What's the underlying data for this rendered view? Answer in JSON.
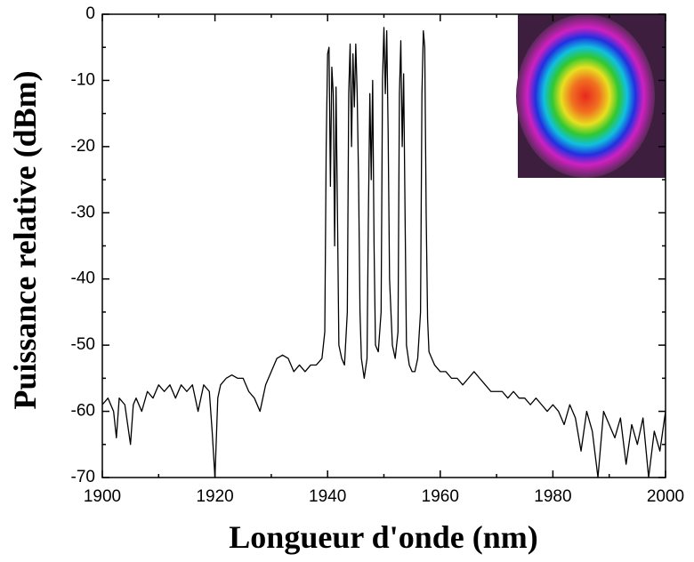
{
  "chart_data": {
    "type": "line",
    "x_label": "Longueur d'onde (nm)",
    "y_label": "Puissance relative (dBm)",
    "xlim": [
      1900,
      2000
    ],
    "xticks": [
      1900,
      1920,
      1940,
      1960,
      1980,
      2000
    ],
    "ylim": [
      -70,
      0
    ],
    "yticks": [
      -70,
      -60,
      -50,
      -40,
      -30,
      -20,
      -10,
      0
    ],
    "color": "#000000",
    "x": [
      1900,
      1901,
      1902,
      1902.5,
      1903,
      1904,
      1905,
      1905.5,
      1906,
      1907,
      1908,
      1909,
      1910,
      1911,
      1912,
      1913,
      1914,
      1915,
      1916,
      1917,
      1918,
      1919,
      1919.5,
      1920,
      1920.5,
      1921,
      1922,
      1923,
      1924,
      1925,
      1926,
      1927,
      1928,
      1929,
      1930,
      1931,
      1932,
      1933,
      1934,
      1935,
      1936,
      1937,
      1938,
      1939,
      1939.5,
      1939.75,
      1940,
      1940.25,
      1940.5,
      1940.75,
      1941,
      1941.25,
      1941.5,
      1941.75,
      1942,
      1942.5,
      1943,
      1943.5,
      1943.75,
      1944,
      1944.25,
      1944.5,
      1944.75,
      1945,
      1945.25,
      1945.5,
      1945.75,
      1946,
      1946.5,
      1947,
      1947.25,
      1947.5,
      1947.75,
      1948,
      1948.25,
      1948.5,
      1949,
      1949.5,
      1949.75,
      1950,
      1950.25,
      1950.5,
      1950.75,
      1951,
      1951.5,
      1952,
      1952.5,
      1952.75,
      1953,
      1953.25,
      1953.5,
      1953.75,
      1954,
      1954.5,
      1955,
      1955.5,
      1956,
      1956.5,
      1956.75,
      1957,
      1957.25,
      1957.5,
      1957.75,
      1958,
      1959,
      1960,
      1961,
      1962,
      1963,
      1964,
      1965,
      1966,
      1967,
      1968,
      1969,
      1970,
      1971,
      1972,
      1973,
      1974,
      1975,
      1976,
      1977,
      1978,
      1979,
      1980,
      1981,
      1982,
      1983,
      1984,
      1985,
      1986,
      1987,
      1988,
      1989,
      1990,
      1991,
      1992,
      1993,
      1994,
      1995,
      1996,
      1997,
      1998,
      1999,
      2000
    ],
    "values": [
      -59,
      -58,
      -60,
      -64,
      -58,
      -59,
      -65,
      -59,
      -58,
      -60,
      -57,
      -58,
      -56,
      -57,
      -56,
      -58,
      -56,
      -57,
      -56,
      -60,
      -56,
      -57,
      -63,
      -70,
      -58,
      -56,
      -55,
      -54.5,
      -55,
      -55,
      -57,
      -58,
      -60,
      -56,
      -54,
      -52,
      -51.5,
      -52,
      -54,
      -53,
      -54,
      -53,
      -53,
      -52,
      -48,
      -20,
      -6,
      -5,
      -26,
      -8,
      -12,
      -35,
      -11,
      -30,
      -50,
      -52,
      -53,
      -45,
      -12,
      -4.5,
      -20,
      -6,
      -14,
      -4.5,
      -12,
      -25,
      -45,
      -52,
      -55,
      -52,
      -30,
      -12,
      -25,
      -10,
      -35,
      -50,
      -51,
      -45,
      -10,
      -2,
      -12,
      -2.5,
      -18,
      -40,
      -50,
      -52,
      -48,
      -12,
      -4,
      -20,
      -9,
      -30,
      -50,
      -53,
      -54,
      -54,
      -52,
      -45,
      -12,
      -2.5,
      -5,
      -30,
      -46,
      -51,
      -53,
      -54,
      -54,
      -55,
      -55,
      -56,
      -55,
      -54,
      -55,
      -56,
      -57,
      -57,
      -57,
      -58,
      -57,
      -58,
      -58,
      -59,
      -58,
      -59,
      -60,
      -59,
      -60,
      -62,
      -59,
      -61,
      -66,
      -60,
      -63,
      -70,
      -60,
      -62,
      -64,
      -61,
      -68,
      -62,
      -65,
      -61,
      -70,
      -63,
      -66,
      -60
    ]
  }
}
